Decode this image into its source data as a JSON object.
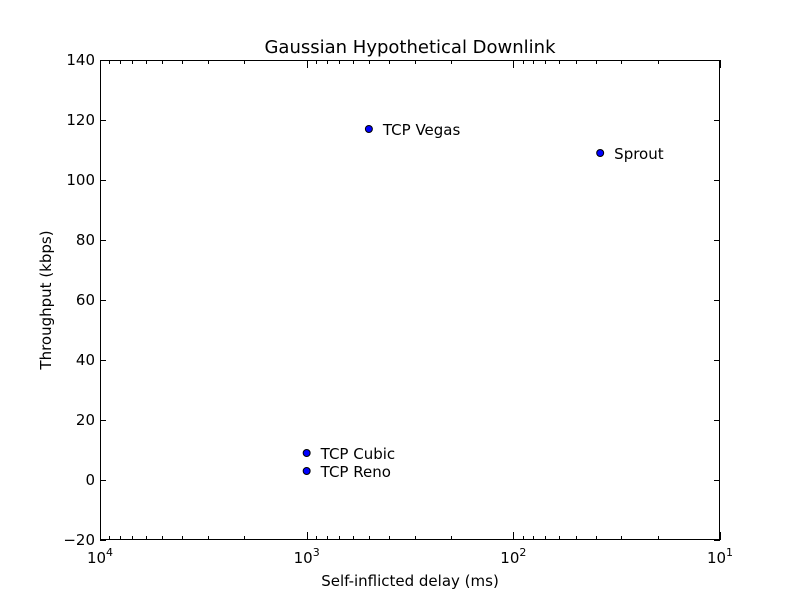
{
  "chart_data": {
    "type": "scatter",
    "title": "Gaussian Hypothetical Downlink",
    "xlabel": "Self-inflicted delay (ms)",
    "ylabel": "Throughput (kbps)",
    "x_scale": "log",
    "x_inverted": true,
    "xlim": [
      10000,
      10
    ],
    "ylim": [
      -20,
      140
    ],
    "grid": false,
    "marker_color": "#0000ff",
    "y_ticks": [
      -20,
      0,
      20,
      40,
      60,
      80,
      100,
      120,
      140
    ],
    "y_tick_labels": [
      "−20",
      "0",
      "20",
      "40",
      "60",
      "80",
      "100",
      "120",
      "140"
    ],
    "x_ticks": [
      {
        "value": 10000,
        "base": "10",
        "exp": "4"
      },
      {
        "value": 1000,
        "base": "10",
        "exp": "3"
      },
      {
        "value": 100,
        "base": "10",
        "exp": "2"
      },
      {
        "value": 10,
        "base": "10",
        "exp": "1"
      }
    ],
    "points": [
      {
        "label": "TCP Vegas",
        "x": 500,
        "y": 117
      },
      {
        "label": "Sprout",
        "x": 38,
        "y": 109
      },
      {
        "label": "TCP Cubic",
        "x": 1000,
        "y": 9
      },
      {
        "label": "TCP Reno",
        "x": 1000,
        "y": 3
      }
    ]
  }
}
